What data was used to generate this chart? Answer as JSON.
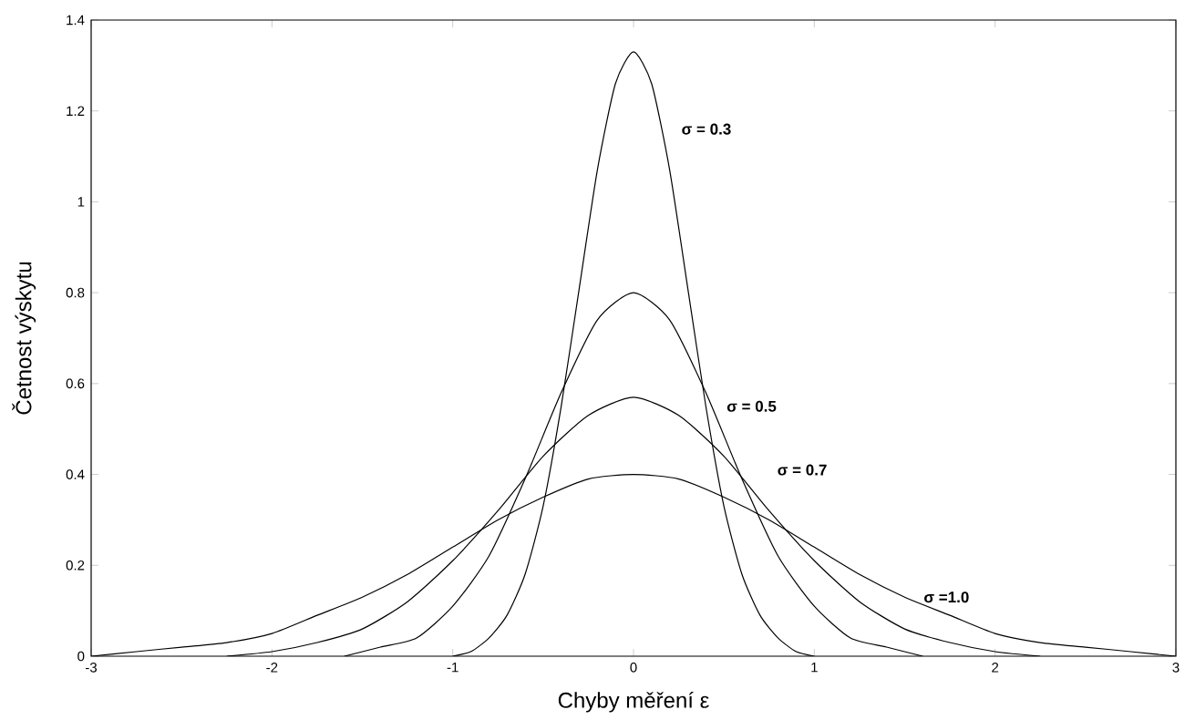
{
  "chart_data": {
    "type": "line",
    "xlabel": "Chyby měření ε",
    "ylabel": "Četnost výskytu",
    "xlim": [
      -3,
      3
    ],
    "ylim": [
      0,
      1.4
    ],
    "xticks": [
      -3,
      -2,
      -1,
      0,
      1,
      2,
      3
    ],
    "yticks": [
      0,
      0.2,
      0.4,
      0.6,
      0.8,
      1,
      1.2,
      1.4
    ],
    "grid": false,
    "marker": "none",
    "line_style": "solid",
    "series": [
      {
        "name": "σ = 0.3",
        "color": "#000000",
        "x": [
          -1,
          -0.9,
          -0.8,
          -0.7,
          -0.6,
          -0.5,
          -0.4,
          -0.3,
          -0.2,
          -0.1,
          0,
          0.1,
          0.2,
          0.3,
          0.4,
          0.5,
          0.6,
          0.7,
          0.8,
          0.9,
          1
        ],
        "values": [
          0,
          0.01,
          0.04,
          0.09,
          0.18,
          0.33,
          0.55,
          0.81,
          1.07,
          1.26,
          1.33,
          1.26,
          1.07,
          0.81,
          0.55,
          0.33,
          0.18,
          0.09,
          0.04,
          0.01,
          0
        ]
      },
      {
        "name": "σ = 0.5",
        "color": "#000000",
        "x": [
          -1.6,
          -1.4,
          -1.2,
          -1,
          -0.8,
          -0.6,
          -0.4,
          -0.2,
          0,
          0.2,
          0.4,
          0.6,
          0.8,
          1,
          1.2,
          1.4,
          1.6
        ],
        "values": [
          0,
          0.02,
          0.04,
          0.11,
          0.22,
          0.39,
          0.58,
          0.74,
          0.8,
          0.74,
          0.58,
          0.39,
          0.22,
          0.11,
          0.04,
          0.02,
          0
        ]
      },
      {
        "name": "σ = 0.7",
        "color": "#000000",
        "x": [
          -2.25,
          -2,
          -1.75,
          -1.5,
          -1.25,
          -1,
          -0.75,
          -0.5,
          -0.25,
          0,
          0.25,
          0.5,
          0.75,
          1,
          1.25,
          1.5,
          1.75,
          2,
          2.25
        ],
        "values": [
          0,
          0.01,
          0.03,
          0.06,
          0.12,
          0.21,
          0.32,
          0.44,
          0.53,
          0.57,
          0.53,
          0.44,
          0.32,
          0.21,
          0.12,
          0.06,
          0.03,
          0.01,
          0
        ]
      },
      {
        "name": "σ =1.0",
        "color": "#000000",
        "x": [
          -3,
          -2.75,
          -2.5,
          -2.25,
          -2,
          -1.75,
          -1.5,
          -1.25,
          -1,
          -0.75,
          -0.5,
          -0.25,
          0,
          0.25,
          0.5,
          0.75,
          1,
          1.25,
          1.5,
          1.75,
          2,
          2.25,
          2.5,
          2.75,
          3
        ],
        "values": [
          0,
          0.01,
          0.02,
          0.03,
          0.05,
          0.09,
          0.13,
          0.18,
          0.24,
          0.3,
          0.35,
          0.39,
          0.4,
          0.39,
          0.35,
          0.3,
          0.24,
          0.18,
          0.13,
          0.09,
          0.05,
          0.03,
          0.02,
          0.01,
          0
        ]
      }
    ]
  }
}
